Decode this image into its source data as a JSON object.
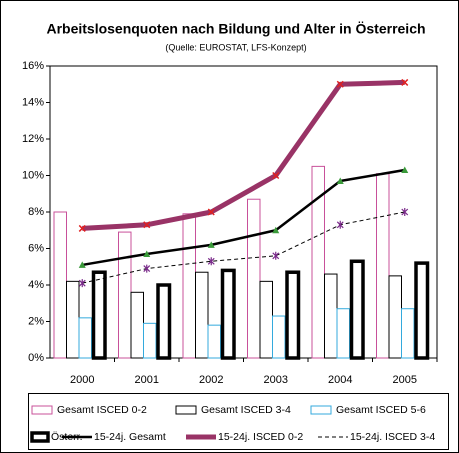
{
  "chart_data": {
    "type": "bar_line",
    "title": "Arbeitslosenquoten nach Bildung und Alter in Österreich",
    "subtitle": "(Quelle: EUROSTAT, LFS-Konzept)",
    "categories": [
      "2000",
      "2001",
      "2002",
      "2003",
      "2004",
      "2005"
    ],
    "ylim": [
      0,
      16
    ],
    "yticks": [
      {
        "value": 0,
        "label": "0%"
      },
      {
        "value": 2,
        "label": "2%"
      },
      {
        "value": 4,
        "label": "4%"
      },
      {
        "value": 6,
        "label": "6%"
      },
      {
        "value": 8,
        "label": "8%"
      },
      {
        "value": 10,
        "label": "10%"
      },
      {
        "value": 12,
        "label": "12%"
      },
      {
        "value": 14,
        "label": "14%"
      },
      {
        "value": 16,
        "label": "16%"
      }
    ],
    "series": [
      {
        "name": "Gesamt ISCED 0-2",
        "type": "bar",
        "color": "#c8509a",
        "stroke_width": 1,
        "values": [
          8.0,
          6.9,
          7.9,
          8.7,
          10.5,
          10.1
        ]
      },
      {
        "name": "Gesamt ISCED 3-4",
        "type": "bar",
        "color": "#000000",
        "stroke_width": 1,
        "values": [
          4.2,
          3.6,
          4.7,
          4.2,
          4.6,
          4.5
        ]
      },
      {
        "name": "Gesamt ISCED 5-6",
        "type": "bar",
        "color": "#33aadd",
        "stroke_width": 1,
        "values": [
          2.2,
          1.9,
          1.8,
          2.3,
          2.7,
          2.7
        ]
      },
      {
        "name": "Österr.",
        "type": "bar",
        "color": "#000000",
        "stroke_width": 3.5,
        "values": [
          4.7,
          4.0,
          4.8,
          4.7,
          5.3,
          5.2
        ]
      },
      {
        "name": "15-24j. Gesamt",
        "type": "line",
        "color": "#000000",
        "stroke_width": 2.5,
        "marker": "triangle",
        "marker_color": "#3a9a3a",
        "values": [
          5.1,
          5.7,
          6.2,
          7.0,
          9.7,
          10.3
        ]
      },
      {
        "name": "15-24j. ISCED 0-2",
        "type": "line",
        "color": "#993366",
        "stroke_width": 5,
        "marker": "x",
        "marker_color": "#e02020",
        "values": [
          7.1,
          7.3,
          8.0,
          10.0,
          15.0,
          15.1
        ]
      },
      {
        "name": "15-24j. ISCED 3-4",
        "type": "line",
        "color": "#000000",
        "stroke_width": 1,
        "dashed": true,
        "marker": "star",
        "marker_color": "#7a2a8a",
        "values": [
          4.1,
          4.9,
          5.3,
          5.6,
          7.3,
          8.0
        ]
      }
    ]
  }
}
